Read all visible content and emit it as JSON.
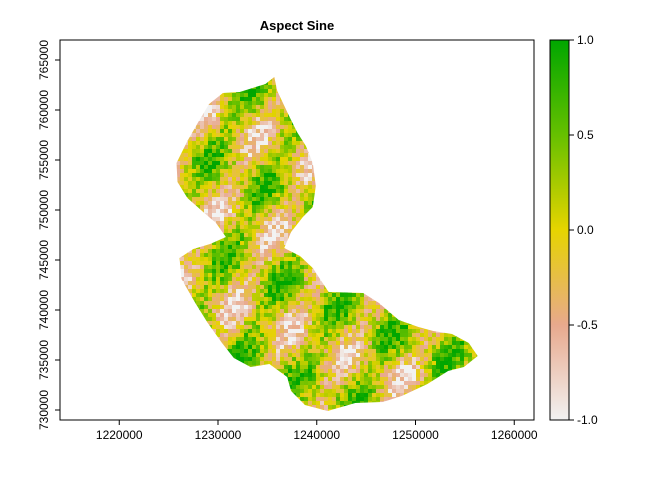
{
  "title": "Aspect Sine",
  "chart_data": {
    "type": "heatmap",
    "title": "Aspect Sine",
    "xlabel": "",
    "ylabel": "",
    "xlim": [
      1214000,
      1262000
    ],
    "ylim": [
      729000,
      767000
    ],
    "x_ticks": [
      {
        "value": 1220000,
        "label": "1220000"
      },
      {
        "value": 1230000,
        "label": "1230000"
      },
      {
        "value": 1240000,
        "label": "1240000"
      },
      {
        "value": 1250000,
        "label": "1250000"
      },
      {
        "value": 1260000,
        "label": "1260000"
      }
    ],
    "y_ticks": [
      {
        "value": 730000,
        "label": "730000"
      },
      {
        "value": 735000,
        "label": "735000"
      },
      {
        "value": 740000,
        "label": "740000"
      },
      {
        "value": 745000,
        "label": "745000"
      },
      {
        "value": 750000,
        "label": "750000"
      },
      {
        "value": 755000,
        "label": "755000"
      },
      {
        "value": 760000,
        "label": "760000"
      },
      {
        "value": 765000,
        "label": "765000"
      }
    ],
    "legend": {
      "placement": "right",
      "range": [
        -1.0,
        1.0
      ],
      "ticks": [
        {
          "value": 1.0,
          "label": "1.0"
        },
        {
          "value": 0.5,
          "label": "0.5"
        },
        {
          "value": 0.0,
          "label": "0.0"
        },
        {
          "value": -0.5,
          "label": "-0.5"
        },
        {
          "value": -1.0,
          "label": "-1.0"
        }
      ],
      "color_stops": [
        {
          "value": -1.0,
          "color": "#f2f2f2"
        },
        {
          "value": -0.5,
          "color": "#e8a98d"
        },
        {
          "value": 0.0,
          "color": "#e6d400"
        },
        {
          "value": 0.5,
          "color": "#66c000"
        },
        {
          "value": 1.0,
          "color": "#00a600"
        }
      ]
    },
    "region_outline": [
      [
        1232200,
        761800
      ],
      [
        1234800,
        762600
      ],
      [
        1235700,
        763300
      ],
      [
        1236000,
        761900
      ],
      [
        1237200,
        759400
      ],
      [
        1238000,
        757800
      ],
      [
        1238900,
        756400
      ],
      [
        1239600,
        754700
      ],
      [
        1239900,
        752400
      ],
      [
        1239600,
        750300
      ],
      [
        1238600,
        749300
      ],
      [
        1237400,
        747800
      ],
      [
        1236700,
        746200
      ],
      [
        1238300,
        745400
      ],
      [
        1239600,
        744200
      ],
      [
        1240600,
        742700
      ],
      [
        1241200,
        741800
      ],
      [
        1244700,
        741700
      ],
      [
        1246300,
        740700
      ],
      [
        1248300,
        739000
      ],
      [
        1250300,
        738300
      ],
      [
        1251800,
        737900
      ],
      [
        1253700,
        737600
      ],
      [
        1255400,
        736700
      ],
      [
        1256300,
        735400
      ],
      [
        1254900,
        734300
      ],
      [
        1253300,
        733900
      ],
      [
        1251200,
        732600
      ],
      [
        1248600,
        731400
      ],
      [
        1246700,
        730800
      ],
      [
        1243900,
        730700
      ],
      [
        1241100,
        729900
      ],
      [
        1238800,
        730500
      ],
      [
        1237400,
        731900
      ],
      [
        1237000,
        733300
      ],
      [
        1235200,
        734600
      ],
      [
        1233300,
        734300
      ],
      [
        1231600,
        735200
      ],
      [
        1230400,
        736700
      ],
      [
        1228900,
        738800
      ],
      [
        1227700,
        740700
      ],
      [
        1226300,
        743100
      ],
      [
        1226100,
        745200
      ],
      [
        1227500,
        746100
      ],
      [
        1229200,
        746600
      ],
      [
        1230800,
        747300
      ],
      [
        1229800,
        748700
      ],
      [
        1228500,
        749800
      ],
      [
        1226900,
        751200
      ],
      [
        1225900,
        752800
      ],
      [
        1225800,
        754700
      ],
      [
        1226900,
        756900
      ],
      [
        1228000,
        758800
      ],
      [
        1229100,
        760600
      ],
      [
        1230500,
        761700
      ]
    ]
  }
}
